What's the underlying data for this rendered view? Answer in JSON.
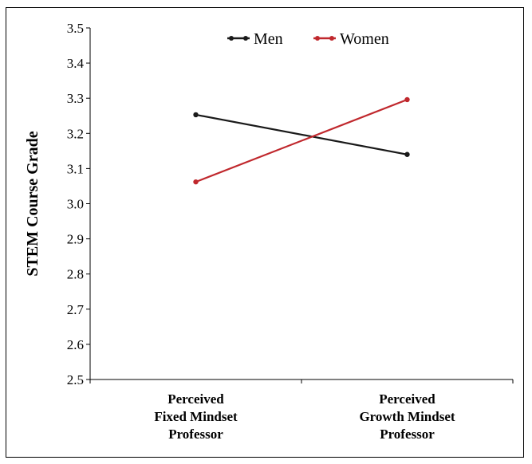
{
  "chart_data": {
    "type": "line",
    "title": "",
    "xlabel": "",
    "ylabel": "STEM Course Grade",
    "ylim": [
      2.5,
      3.5
    ],
    "yticks": [
      "2.5",
      "2.6",
      "2.7",
      "2.8",
      "2.9",
      "3.0",
      "3.1",
      "3.2",
      "3.3",
      "3.4",
      "3.5"
    ],
    "categories": [
      [
        "Perceived",
        "Fixed Mindset",
        "Professor"
      ],
      [
        "Perceived",
        "Growth Mindset",
        "Professor"
      ]
    ],
    "series": [
      {
        "name": "Men",
        "values": [
          3.253,
          3.14
        ],
        "color": "#1a1a1a"
      },
      {
        "name": "Women",
        "values": [
          3.062,
          3.296
        ],
        "color": "#c0282d"
      }
    ],
    "legend_position": "top-center",
    "grid": false
  }
}
